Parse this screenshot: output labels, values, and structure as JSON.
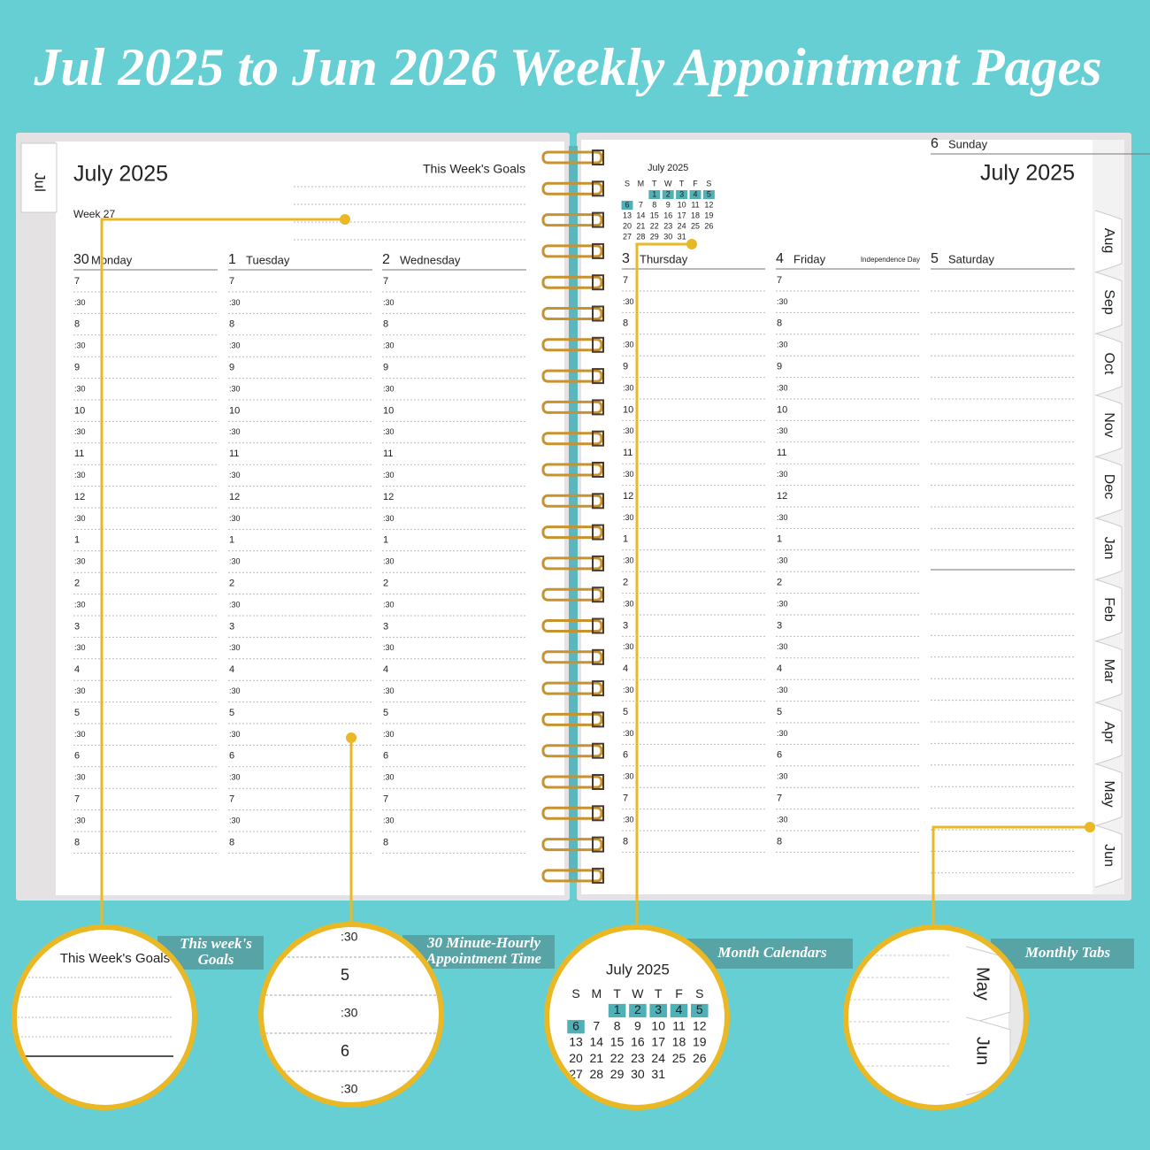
{
  "header": {
    "title": "Jul 2025 to Jun 2026 Weekly Appointment Pages"
  },
  "time_slots": [
    "7",
    ":30",
    "8",
    ":30",
    "9",
    ":30",
    "10",
    ":30",
    "11",
    ":30",
    "12",
    ":30",
    "1",
    ":30",
    "2",
    ":30",
    "3",
    ":30",
    "4",
    ":30",
    "5",
    ":30",
    "6",
    ":30",
    "7",
    ":30",
    "8"
  ],
  "left_page": {
    "tab": "Jul",
    "month": "July 2025",
    "week": "Week 27",
    "goals_title": "This Week's Goals",
    "days": [
      {
        "date": "30",
        "name": "Monday"
      },
      {
        "date": "1",
        "name": "Tuesday"
      },
      {
        "date": "2",
        "name": "Wednesday"
      }
    ]
  },
  "right_page": {
    "month": "July 2025",
    "mini_calendar": {
      "title": "July 2025",
      "weekdays": [
        "S",
        "M",
        "T",
        "W",
        "T",
        "F",
        "S"
      ],
      "weeks": [
        [
          null,
          null,
          "1",
          "2",
          "3",
          "4",
          "5"
        ],
        [
          "6",
          "7",
          "8",
          "9",
          "10",
          "11",
          "12"
        ],
        [
          "13",
          "14",
          "15",
          "16",
          "17",
          "18",
          "19"
        ],
        [
          "20",
          "21",
          "22",
          "23",
          "24",
          "25",
          "26"
        ],
        [
          "27",
          "28",
          "29",
          "30",
          "31",
          null,
          null
        ]
      ]
    },
    "days": [
      {
        "date": "3",
        "name": "Thursday"
      },
      {
        "date": "4",
        "name": "Friday",
        "note": "Independence Day"
      },
      {
        "date": "5",
        "name": "Saturday"
      },
      {
        "date": "6",
        "name": "Sunday"
      }
    ],
    "tabs": [
      "Aug",
      "Sep",
      "Oct",
      "Nov",
      "Dec",
      "Jan",
      "Feb",
      "Mar",
      "Apr",
      "May",
      "Jun"
    ]
  },
  "callouts": [
    {
      "lines": [
        "This week's",
        "Goals"
      ]
    },
    {
      "lines": [
        "30 Minute-Hourly",
        "Appointment Time"
      ]
    },
    {
      "lines": [
        "Month Calendars"
      ]
    },
    {
      "lines": [
        "Monthly Tabs"
      ]
    }
  ]
}
